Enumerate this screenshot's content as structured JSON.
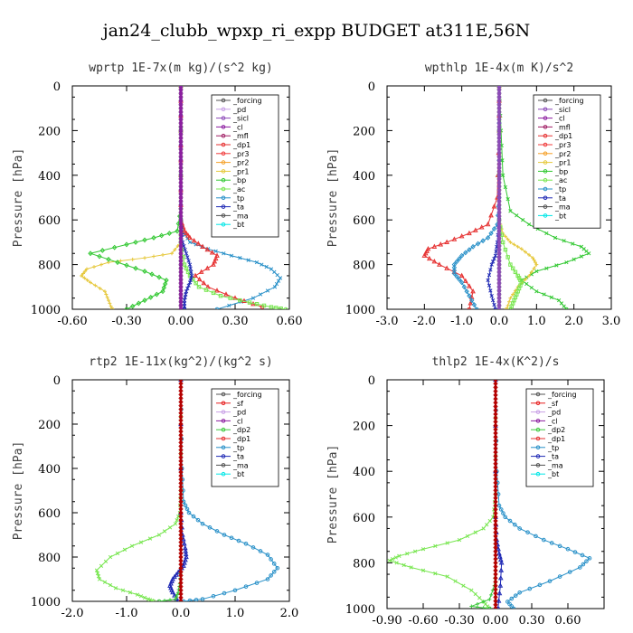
{
  "figure_title": "jan24_clubb_wpxp_ri_expp  BUDGET at311E,56N",
  "colors": {
    "forcing": "#555555",
    "pd": "#c8a0e6",
    "sicl": "#8c4ab8",
    "cl": "#8c1ea0",
    "mfl": "#a01e64",
    "dp1": "#e63232",
    "pr3": "#f03c3c",
    "pr2": "#f5a028",
    "pr1": "#e6c83c",
    "bp": "#32c832",
    "ac": "#78e650",
    "tp": "#2890c8",
    "ta": "#1e28b4",
    "ma": "#505050",
    "bt": "#00e6e6",
    "sf": "#e61e1e",
    "dp2": "#3cc83c",
    "main_line": "#b40000"
  },
  "chart_data": [
    {
      "type": "line",
      "title": "wprtp  1E-7x(m kg)/(s^2 kg)",
      "ylabel": "Pressure [hPa]",
      "xlim": [
        -0.6,
        0.6
      ],
      "ylim": [
        1000,
        0
      ],
      "xticks": [
        "-0.60",
        "-0.30",
        "0.00",
        "0.30",
        "0.60"
      ],
      "xtick_values": [
        -0.6,
        -0.3,
        0.0,
        0.3,
        0.6
      ],
      "yticks": [
        "0",
        "200",
        "400",
        "600",
        "800",
        "1000"
      ],
      "ytick_values": [
        0,
        200,
        400,
        600,
        800,
        1000
      ],
      "legend_position": "top-right",
      "legend": [
        "_forcing",
        "_pd",
        "_sicl",
        "_cl",
        "_mfl",
        "_dp1",
        "_pr3",
        "_pr2",
        "_pr1",
        "_bp",
        "_ac",
        "_tp",
        "_ta",
        "_ma",
        "_bt"
      ],
      "series": [
        {
          "name": "_forcing",
          "color": "#555555",
          "x": [
            0,
            0,
            0,
            0,
            0,
            0,
            0,
            0,
            0,
            0,
            0
          ],
          "y": [
            0,
            100,
            200,
            300,
            400,
            500,
            600,
            700,
            800,
            900,
            1000
          ]
        },
        {
          "name": "_tp",
          "color": "#2890c8",
          "x": [
            0,
            0,
            0,
            0,
            0.01,
            0.05,
            0.15,
            0.28,
            0.42,
            0.5,
            0.55,
            0.52,
            0.4,
            0.2
          ],
          "y": [
            0,
            200,
            400,
            600,
            650,
            700,
            730,
            760,
            790,
            820,
            860,
            900,
            950,
            1000
          ]
        },
        {
          "name": "_dp1",
          "color": "#e63232",
          "x": [
            0,
            0,
            0,
            0,
            0.02,
            0.05,
            0.12,
            0.2,
            0.18,
            0.08,
            0.15,
            0.3,
            0.45
          ],
          "y": [
            0,
            200,
            400,
            600,
            650,
            680,
            720,
            760,
            800,
            850,
            900,
            950,
            990
          ]
        },
        {
          "name": "_pr1",
          "color": "#e6c83c",
          "x": [
            0,
            0,
            0,
            -0.05,
            -0.2,
            -0.4,
            -0.52,
            -0.55,
            -0.5,
            -0.42,
            -0.4,
            -0.38
          ],
          "y": [
            0,
            600,
            700,
            750,
            770,
            790,
            820,
            850,
            880,
            920,
            960,
            1000
          ]
        },
        {
          "name": "_bp",
          "color": "#32c832",
          "x": [
            0,
            0,
            -0.02,
            -0.15,
            -0.3,
            -0.5,
            -0.35,
            -0.2,
            -0.08,
            -0.1,
            -0.2,
            -0.3
          ],
          "y": [
            0,
            550,
            650,
            680,
            710,
            750,
            790,
            830,
            870,
            920,
            960,
            1000
          ]
        },
        {
          "name": "_ac",
          "color": "#78e650",
          "x": [
            0,
            0,
            0,
            0.02,
            0.05,
            0.1,
            0.22,
            0.38,
            0.5,
            0.58
          ],
          "y": [
            0,
            600,
            700,
            800,
            850,
            900,
            940,
            970,
            990,
            1000
          ]
        },
        {
          "name": "_ta",
          "color": "#1e28b4",
          "x": [
            0,
            0,
            0.01,
            0.03,
            0.05,
            0.06,
            0.05,
            0.03,
            0.02,
            0.02
          ],
          "y": [
            0,
            600,
            700,
            750,
            800,
            850,
            880,
            920,
            960,
            1000
          ]
        },
        {
          "name": "_cl",
          "color": "#8c1ea0",
          "x": [
            0,
            0,
            0,
            0,
            0,
            0,
            0,
            0,
            0,
            0,
            0
          ],
          "y": [
            0,
            100,
            200,
            300,
            400,
            500,
            600,
            700,
            800,
            900,
            1000
          ]
        }
      ]
    },
    {
      "type": "line",
      "title": "wpthlp  1E-4x(m K)/s^2",
      "ylabel": "Pressure [hPa]",
      "xlim": [
        -3.0,
        3.0
      ],
      "ylim": [
        1000,
        0
      ],
      "xticks": [
        "-3.0",
        "-2.0",
        "-1.0",
        "0.0",
        "1.0",
        "2.0",
        "3.0"
      ],
      "xtick_values": [
        -3,
        -2,
        -1,
        0,
        1,
        2,
        3
      ],
      "yticks": [
        "0",
        "200",
        "400",
        "600",
        "800",
        "1000"
      ],
      "ytick_values": [
        0,
        200,
        400,
        600,
        800,
        1000
      ],
      "legend_position": "top-right",
      "legend": [
        "_forcing",
        "_sicl",
        "_cl",
        "_mfl",
        "_dp1",
        "_pr3",
        "_pr2",
        "_pr1",
        "_bp",
        "_ac",
        "_tp",
        "_ta",
        "_ma",
        "_bt"
      ],
      "series": [
        {
          "name": "_forcing",
          "color": "#555555",
          "x": [
            0,
            0,
            0,
            0,
            0,
            0,
            0,
            0,
            0,
            0,
            0
          ],
          "y": [
            0,
            100,
            200,
            300,
            400,
            500,
            600,
            700,
            800,
            900,
            1000
          ]
        },
        {
          "name": "_bp",
          "color": "#32c832",
          "x": [
            0,
            0.05,
            0.1,
            0.3,
            0.8,
            1.5,
            2.2,
            2.4,
            1.8,
            1.0,
            0.6,
            1.0,
            1.6,
            1.8
          ],
          "y": [
            0,
            200,
            400,
            560,
            620,
            680,
            720,
            750,
            790,
            830,
            870,
            920,
            960,
            1000
          ]
        },
        {
          "name": "_dp1",
          "color": "#e63232",
          "x": [
            0,
            0,
            -0.05,
            -0.3,
            -0.8,
            -1.4,
            -1.9,
            -2.0,
            -1.6,
            -1.0,
            -0.7,
            -0.8
          ],
          "y": [
            0,
            200,
            500,
            620,
            660,
            700,
            730,
            760,
            800,
            850,
            920,
            1000
          ]
        },
        {
          "name": "_pr1",
          "color": "#e6c83c",
          "x": [
            0,
            0,
            0,
            0.1,
            0.3,
            0.6,
            0.9,
            1.0,
            0.8,
            0.5,
            0.3,
            0.2
          ],
          "y": [
            0,
            400,
            600,
            660,
            700,
            730,
            770,
            800,
            850,
            900,
            950,
            1000
          ]
        },
        {
          "name": "_tp",
          "color": "#2890c8",
          "x": [
            0,
            0,
            -0.05,
            -0.3,
            -0.7,
            -1.0,
            -1.2,
            -1.2,
            -1.0,
            -0.8,
            -0.6
          ],
          "y": [
            0,
            500,
            620,
            680,
            720,
            760,
            800,
            840,
            880,
            940,
            1000
          ]
        },
        {
          "name": "_ac",
          "color": "#78e650",
          "x": [
            0,
            0,
            0.1,
            0.3,
            0.5,
            0.6,
            0.5,
            0.4,
            0.3
          ],
          "y": [
            0,
            600,
            700,
            800,
            850,
            880,
            920,
            960,
            1000
          ]
        },
        {
          "name": "_ta",
          "color": "#1e28b4",
          "x": [
            0,
            0,
            -0.05,
            -0.1,
            -0.2,
            -0.3,
            -0.2,
            -0.1
          ],
          "y": [
            0,
            600,
            700,
            760,
            800,
            870,
            940,
            1000
          ]
        },
        {
          "name": "_sicl",
          "color": "#8c4ab8",
          "x": [
            0,
            0,
            0,
            0,
            0,
            0,
            0,
            0,
            0,
            0,
            0
          ],
          "y": [
            0,
            100,
            200,
            300,
            400,
            500,
            600,
            700,
            800,
            900,
            1000
          ]
        }
      ]
    },
    {
      "type": "line",
      "title": "rtp2  1E-11x(kg^2)/(kg^2 s)",
      "ylabel": "Pressure [hPa]",
      "xlim": [
        -2.0,
        2.0
      ],
      "ylim": [
        1000,
        0
      ],
      "xticks": [
        "-2.0",
        "-1.0",
        "0.0",
        "1.0",
        "2.0"
      ],
      "xtick_values": [
        -2,
        -1,
        0,
        1,
        2
      ],
      "yticks": [
        "0",
        "200",
        "400",
        "600",
        "800",
        "1000"
      ],
      "ytick_values": [
        0,
        200,
        400,
        600,
        800,
        1000
      ],
      "legend_position": "top-right",
      "legend": [
        "_forcing",
        "_sf",
        "_pd",
        "_cl",
        "_dp2",
        "_dp1",
        "_tp",
        "_ta",
        "_ma",
        "_bt"
      ],
      "series": [
        {
          "name": "_tp",
          "color": "#2890c8",
          "x": [
            0,
            0.02,
            0.05,
            0.15,
            0.4,
            0.8,
            1.2,
            1.6,
            1.78,
            1.6,
            1.0,
            0.4,
            0.05
          ],
          "y": [
            0,
            400,
            550,
            600,
            650,
            700,
            740,
            790,
            850,
            900,
            950,
            990,
            1000
          ]
        },
        {
          "name": "_dp1",
          "color": "#78e650",
          "x": [
            0,
            0,
            -0.02,
            -0.1,
            -0.4,
            -0.9,
            -1.3,
            -1.55,
            -1.5,
            -1.2,
            -0.8,
            -0.6,
            -0.5
          ],
          "y": [
            0,
            500,
            600,
            650,
            700,
            750,
            800,
            860,
            900,
            940,
            970,
            990,
            1000
          ]
        },
        {
          "name": "_ta",
          "color": "#1e28b4",
          "x": [
            0,
            0,
            0.03,
            0.08,
            0.1,
            0.05,
            -0.05,
            -0.15,
            -0.2,
            -0.15,
            -0.05
          ],
          "y": [
            0,
            600,
            700,
            760,
            800,
            840,
            870,
            900,
            930,
            960,
            1000
          ]
        },
        {
          "name": "_dp2",
          "color": "#3cc83c",
          "x": [
            0,
            0,
            0,
            -0.02,
            -0.05,
            -0.1,
            -0.4
          ],
          "y": [
            0,
            700,
            850,
            920,
            960,
            990,
            1000
          ]
        },
        {
          "name": "_forcing",
          "color": "#b40000",
          "x": [
            0,
            0,
            0,
            0,
            0,
            0,
            0,
            0,
            0,
            0,
            0
          ],
          "y": [
            0,
            100,
            200,
            300,
            400,
            500,
            600,
            700,
            800,
            900,
            1000
          ]
        }
      ]
    },
    {
      "type": "line",
      "title": "thlp2  1E-4x(K^2)/s",
      "ylabel": "Pressure [hPa]",
      "xlim": [
        -0.9,
        0.9
      ],
      "ylim": [
        1000,
        0
      ],
      "xticks": [
        "-0.90",
        "-0.60",
        "-0.30",
        "0.00",
        "0.30",
        "0.60"
      ],
      "xtick_values": [
        -0.9,
        -0.6,
        -0.3,
        0.0,
        0.3,
        0.6
      ],
      "yticks": [
        "0",
        "200",
        "400",
        "600",
        "800",
        "1000"
      ],
      "ytick_values": [
        0,
        200,
        400,
        600,
        800,
        1000
      ],
      "legend_position": "top-right",
      "legend": [
        "_forcing",
        "_sf",
        "_pd",
        "_cl",
        "_dp2",
        "_dp1",
        "_tp",
        "_ta",
        "_ma",
        "_bt"
      ],
      "series": [
        {
          "name": "_tp",
          "color": "#2890c8",
          "x": [
            0,
            0.01,
            0.03,
            0.08,
            0.2,
            0.4,
            0.6,
            0.78,
            0.7,
            0.45,
            0.2,
            0.1,
            0.15
          ],
          "y": [
            0,
            400,
            550,
            600,
            650,
            700,
            740,
            780,
            820,
            880,
            930,
            970,
            1000
          ]
        },
        {
          "name": "_dp1",
          "color": "#78e650",
          "x": [
            0,
            0,
            -0.02,
            -0.1,
            -0.3,
            -0.6,
            -0.8,
            -0.88,
            -0.7,
            -0.4,
            -0.2,
            -0.1,
            -0.05
          ],
          "y": [
            0,
            500,
            600,
            650,
            700,
            740,
            770,
            790,
            820,
            860,
            920,
            970,
            1000
          ]
        },
        {
          "name": "_ta",
          "color": "#1e28b4",
          "x": [
            0,
            0,
            0.01,
            0.03,
            0.05,
            0.04,
            0.02
          ],
          "y": [
            0,
            600,
            700,
            760,
            800,
            900,
            1000
          ]
        },
        {
          "name": "_dp2",
          "color": "#3cc83c",
          "x": [
            0,
            0,
            -0.01,
            -0.05,
            -0.2,
            -0.05
          ],
          "y": [
            0,
            800,
            900,
            960,
            990,
            1000
          ]
        },
        {
          "name": "_forcing",
          "color": "#b40000",
          "x": [
            0,
            0,
            0,
            0,
            0,
            0,
            0,
            0,
            0,
            0,
            0
          ],
          "y": [
            0,
            100,
            200,
            300,
            400,
            500,
            600,
            700,
            800,
            900,
            1000
          ]
        }
      ]
    }
  ]
}
